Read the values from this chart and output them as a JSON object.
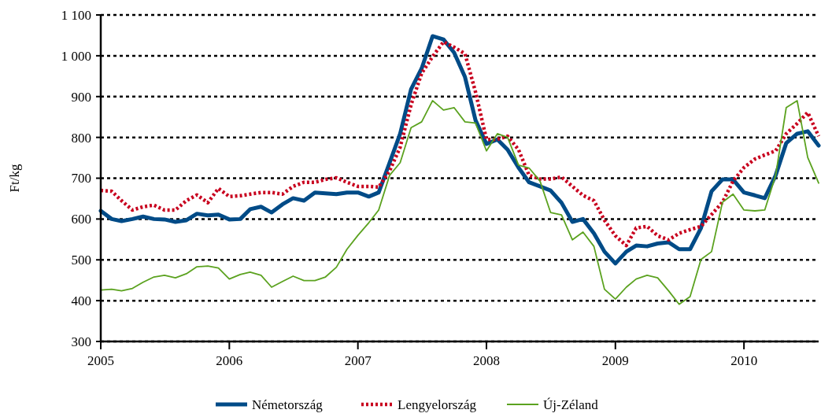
{
  "chart_data": {
    "type": "line",
    "ylabel": "Ft/kg",
    "x": [
      "2005-01",
      "2005-02",
      "2005-03",
      "2005-04",
      "2005-05",
      "2005-06",
      "2005-07",
      "2005-08",
      "2005-09",
      "2005-10",
      "2005-11",
      "2005-12",
      "2006-01",
      "2006-02",
      "2006-03",
      "2006-04",
      "2006-05",
      "2006-06",
      "2006-07",
      "2006-08",
      "2006-09",
      "2006-10",
      "2006-11",
      "2006-12",
      "2007-01",
      "2007-02",
      "2007-03",
      "2007-04",
      "2007-05",
      "2007-06",
      "2007-07",
      "2007-08",
      "2007-09",
      "2007-10",
      "2007-11",
      "2007-12",
      "2008-01",
      "2008-02",
      "2008-03",
      "2008-04",
      "2008-05",
      "2008-06",
      "2008-07",
      "2008-08",
      "2008-09",
      "2008-10",
      "2008-11",
      "2008-12",
      "2009-01",
      "2009-02",
      "2009-03",
      "2009-04",
      "2009-05",
      "2009-06",
      "2009-07",
      "2009-08",
      "2009-09",
      "2009-10",
      "2009-11",
      "2009-12",
      "2010-01",
      "2010-02",
      "2010-03",
      "2010-04",
      "2010-05",
      "2010-06",
      "2010-07",
      "2010-08"
    ],
    "series": [
      {
        "name": "Németország",
        "color": "#004b87",
        "line_style": "solid",
        "values": [
          620,
          600,
          595,
          600,
          606,
          600,
          599,
          593,
          597,
          613,
          609,
          611,
          599,
          600,
          624,
          630,
          616,
          636,
          651,
          645,
          665,
          663,
          661,
          665,
          665,
          655,
          665,
          738,
          809,
          918,
          969,
          1048,
          1040,
          1008,
          948,
          842,
          784,
          795,
          770,
          726,
          690,
          680,
          670,
          640,
          593,
          600,
          565,
          520,
          491,
          520,
          535,
          533,
          540,
          543,
          526,
          526,
          578,
          668,
          697,
          697,
          665,
          658,
          651,
          707,
          786,
          809,
          815,
          780
        ]
      },
      {
        "name": "Lengyelország",
        "color": "#c8001e",
        "line_style": "dotted",
        "values": [
          670,
          668,
          645,
          622,
          630,
          634,
          622,
          622,
          645,
          659,
          640,
          675,
          655,
          657,
          661,
          665,
          665,
          661,
          680,
          690,
          690,
          697,
          701,
          690,
          680,
          680,
          678,
          718,
          776,
          880,
          957,
          998,
          1034,
          1021,
          1005,
          911,
          795,
          795,
          803,
          770,
          707,
          698,
          698,
          703,
          680,
          658,
          645,
          597,
          559,
          535,
          578,
          582,
          559,
          549,
          565,
          574,
          582,
          611,
          641,
          693,
          726,
          747,
          757,
          767,
          809,
          834,
          861,
          803
        ]
      },
      {
        "name": "Új-Zéland",
        "color": "#5ba21f",
        "line_style": "solid",
        "values": [
          426,
          428,
          424,
          430,
          445,
          458,
          462,
          456,
          466,
          483,
          485,
          480,
          453,
          464,
          470,
          462,
          433,
          447,
          460,
          449,
          449,
          458,
          482,
          526,
          560,
          591,
          622,
          707,
          738,
          824,
          838,
          890,
          867,
          873,
          838,
          835,
          767,
          809,
          800,
          732,
          725,
          693,
          616,
          610,
          549,
          568,
          533,
          428,
          404,
          433,
          453,
          462,
          456,
          424,
          391,
          410,
          501,
          520,
          641,
          661,
          622,
          620,
          622,
          707,
          873,
          890,
          751,
          688
        ]
      }
    ],
    "xlim": [
      "2005-01",
      "2010-08"
    ],
    "xticks": [
      "2005",
      "2006",
      "2007",
      "2008",
      "2009",
      "2010"
    ],
    "ylim": [
      300,
      1100
    ],
    "yticks": [
      300,
      400,
      500,
      600,
      700,
      800,
      900,
      {
        "value": 1000,
        "label": "1 000"
      },
      {
        "value": 1100,
        "label": "1 100"
      }
    ],
    "grid": "y",
    "legend": "bottom"
  }
}
